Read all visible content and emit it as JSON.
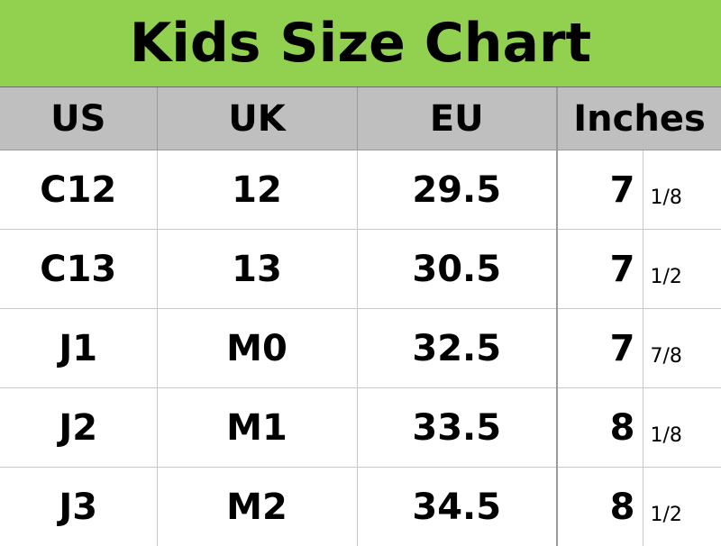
{
  "title": "Kids Size Chart",
  "colors": {
    "title_background": "#92d050",
    "header_background": "#bfbfbf"
  },
  "headers": {
    "us": "US",
    "uk": "UK",
    "eu": "EU",
    "inches": "Inches"
  },
  "rows": [
    {
      "us": "C12",
      "uk": "12",
      "eu": "29.5",
      "inch_whole": "7",
      "inch_fraction": "1/8"
    },
    {
      "us": "C13",
      "uk": "13",
      "eu": "30.5",
      "inch_whole": "7",
      "inch_fraction": "1/2"
    },
    {
      "us": "J1",
      "uk": "M0",
      "eu": "32.5",
      "inch_whole": "7",
      "inch_fraction": "7/8"
    },
    {
      "us": "J2",
      "uk": "M1",
      "eu": "33.5",
      "inch_whole": "8",
      "inch_fraction": "1/8"
    },
    {
      "us": "J3",
      "uk": "M2",
      "eu": "34.5",
      "inch_whole": "8",
      "inch_fraction": "1/2"
    }
  ]
}
